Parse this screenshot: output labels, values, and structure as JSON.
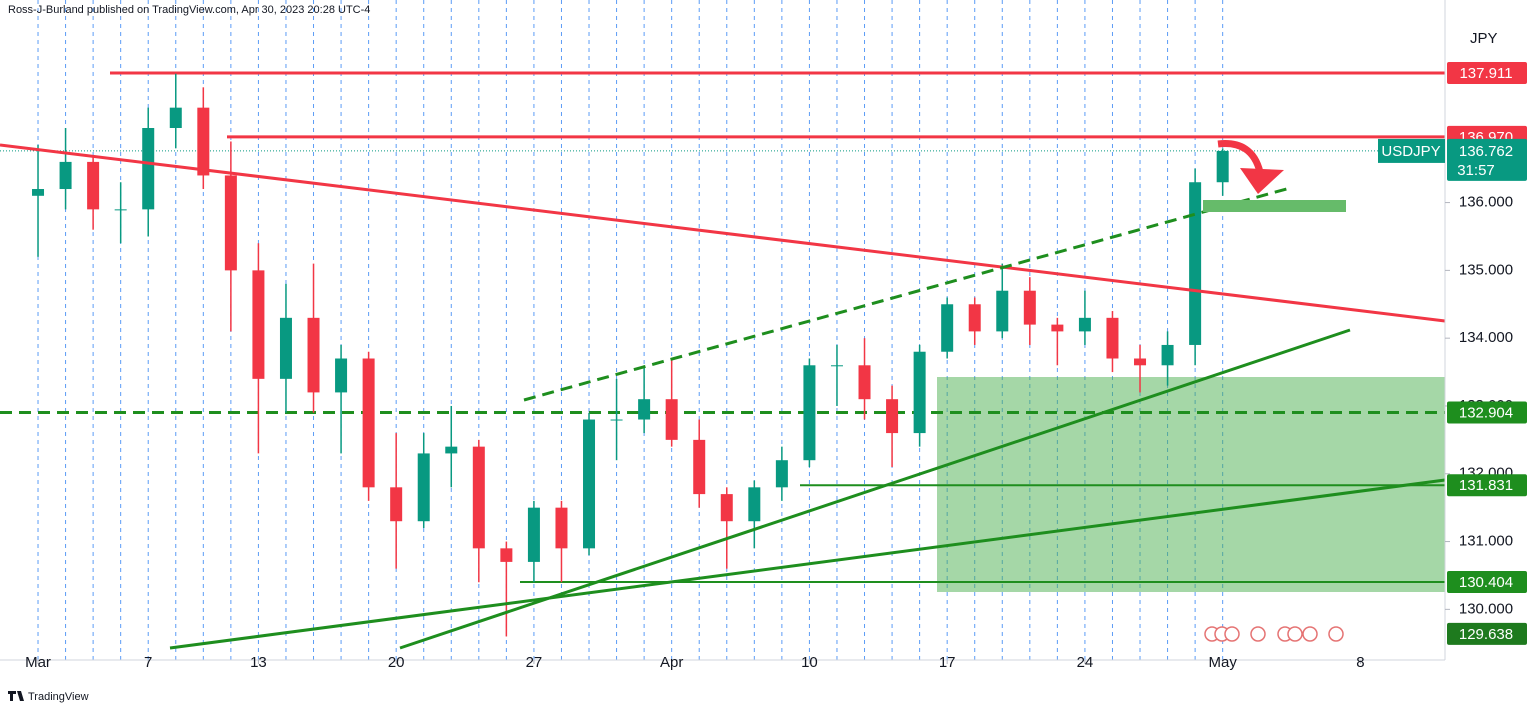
{
  "chart_data": {
    "type": "candlestick",
    "publisher": "Ross-J-Burland published on TradingView.com, Apr 30, 2023 20:28 UTC-4",
    "currency": "JPY",
    "symbol": "USDJPY",
    "last": 136.762,
    "countdown": "31:57",
    "brand": "TradingView",
    "up_color": "#089981",
    "down_color": "#f23645",
    "x": [
      0,
      1,
      2,
      3,
      4,
      5,
      6,
      7,
      8,
      9,
      10,
      11,
      12,
      13,
      14,
      15,
      16,
      17,
      18,
      19,
      20,
      21,
      22,
      23,
      24,
      25,
      26,
      27,
      28,
      29,
      30,
      31,
      32,
      33,
      34,
      35,
      36,
      37,
      38,
      39,
      40,
      41,
      42,
      43
    ],
    "open": [
      136.1,
      136.2,
      136.6,
      135.9,
      135.9,
      137.1,
      137.4,
      136.4,
      135.0,
      133.4,
      134.3,
      133.2,
      133.7,
      131.8,
      131.3,
      132.3,
      132.4,
      130.9,
      130.7,
      131.5,
      130.9,
      132.8,
      132.8,
      133.1,
      132.5,
      131.7,
      131.3,
      131.8,
      132.2,
      133.6,
      133.6,
      133.1,
      132.6,
      133.8,
      134.5,
      134.1,
      134.7,
      134.2,
      134.1,
      134.3,
      133.7,
      133.6,
      133.9,
      136.3
    ],
    "high": [
      136.85,
      137.1,
      136.7,
      136.3,
      137.4,
      137.9,
      137.7,
      136.9,
      135.4,
      134.8,
      135.1,
      133.9,
      133.8,
      132.6,
      132.6,
      133.0,
      132.5,
      131.0,
      131.6,
      131.6,
      132.9,
      133.4,
      133.6,
      133.7,
      132.8,
      131.8,
      131.9,
      132.4,
      133.7,
      133.9,
      134.0,
      133.3,
      133.9,
      134.6,
      134.6,
      135.1,
      134.9,
      134.3,
      134.7,
      134.4,
      133.9,
      134.1,
      136.5,
      136.8
    ],
    "low": [
      135.2,
      135.9,
      135.6,
      135.4,
      135.5,
      136.8,
      136.2,
      134.1,
      132.3,
      132.9,
      132.9,
      132.3,
      131.6,
      130.6,
      131.2,
      131.8,
      130.4,
      129.6,
      130.4,
      130.4,
      130.8,
      132.2,
      132.6,
      132.4,
      131.5,
      130.6,
      130.9,
      131.6,
      132.1,
      133.0,
      132.8,
      132.1,
      132.4,
      133.7,
      133.9,
      134.0,
      133.9,
      133.6,
      133.9,
      133.5,
      133.2,
      133.3,
      133.6,
      136.1
    ],
    "close": [
      136.2,
      136.6,
      135.9,
      135.9,
      137.1,
      137.4,
      136.4,
      135.0,
      133.4,
      134.3,
      133.2,
      133.7,
      131.8,
      131.3,
      132.3,
      132.4,
      130.9,
      130.7,
      131.5,
      130.9,
      132.8,
      132.8,
      133.1,
      132.5,
      131.7,
      131.3,
      131.8,
      132.2,
      133.6,
      133.6,
      133.1,
      132.6,
      133.8,
      134.5,
      134.1,
      134.7,
      134.2,
      134.1,
      134.3,
      133.7,
      133.6,
      133.9,
      136.3,
      136.762
    ],
    "xlim": [
      -1.38,
      51.07
    ],
    "xticks": [
      {
        "value": 0,
        "label": "Mar"
      },
      {
        "value": 4,
        "label": "7"
      },
      {
        "value": 8,
        "label": "13"
      },
      {
        "value": 13,
        "label": "20"
      },
      {
        "value": 18,
        "label": "27"
      },
      {
        "value": 23,
        "label": "Apr"
      },
      {
        "value": 28,
        "label": "10"
      },
      {
        "value": 33,
        "label": "17"
      },
      {
        "value": 38,
        "label": "24"
      },
      {
        "value": 43,
        "label": "May"
      },
      {
        "value": 48,
        "label": "8"
      }
    ],
    "ylim": [
      129.253,
      138.988
    ],
    "yticks": [
      {
        "value": 130,
        "label": "130.000"
      },
      {
        "value": 131,
        "label": "131.000"
      },
      {
        "value": 132,
        "label": "132.000"
      },
      {
        "value": 133,
        "label": "133.000"
      },
      {
        "value": 134,
        "label": "134.000"
      },
      {
        "value": 135,
        "label": "135.000"
      },
      {
        "value": 136,
        "label": "136.000"
      }
    ],
    "levels": [
      {
        "value": 137.911,
        "color": "#f23645",
        "line": "solid"
      },
      {
        "value": 136.97,
        "label": "136.970",
        "color": "#f23645",
        "line": "solid"
      },
      {
        "value": 132.904,
        "color": "#1e8e1e",
        "line": "dashed"
      },
      {
        "value": 131.831,
        "color": "#1e8e1e",
        "line": "thin"
      },
      {
        "value": 130.404,
        "color": "#1e8e1e",
        "line": "thin"
      },
      {
        "value": 129.638,
        "color": "#1e7a1e",
        "line": "none"
      }
    ]
  }
}
